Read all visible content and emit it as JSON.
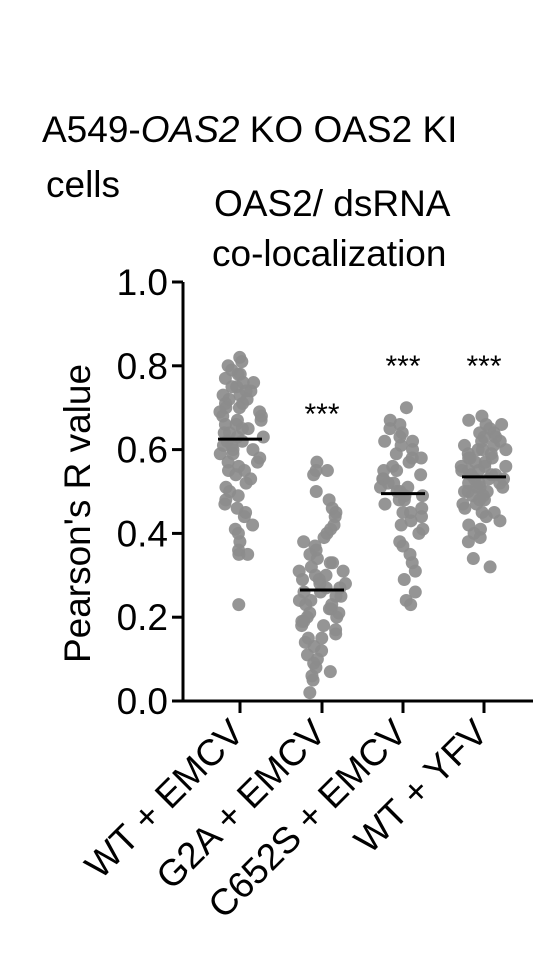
{
  "header": {
    "title_part1": "A549-",
    "title_italic": "OAS2",
    "title_part2": " KO OAS2 KI",
    "title_line2": "cells",
    "subtitle_line1": "OAS2/ dsRNA",
    "subtitle_line2": "co-localization"
  },
  "chart_data": {
    "type": "scatter",
    "title": "OAS2/ dsRNA co-localization",
    "ylabel": "Pearson's R value",
    "xlabel": "",
    "ylim": [
      0.0,
      1.0
    ],
    "yticks": [
      "0.0",
      "0.2",
      "0.4",
      "0.6",
      "0.8",
      "1.0"
    ],
    "categories": [
      "WT + EMCV",
      "G2A + EMCV",
      "C652S + EMCV",
      "WT + YFV"
    ],
    "point_color": "#8c8c8c",
    "median_color": "#000000",
    "groups": [
      {
        "category": "WT + EMCV",
        "median": 0.625,
        "significance": "",
        "values": [
          0.82,
          0.81,
          0.8,
          0.79,
          0.78,
          0.78,
          0.77,
          0.76,
          0.76,
          0.75,
          0.75,
          0.74,
          0.74,
          0.73,
          0.73,
          0.72,
          0.72,
          0.71,
          0.71,
          0.7,
          0.7,
          0.69,
          0.69,
          0.68,
          0.68,
          0.67,
          0.67,
          0.66,
          0.66,
          0.65,
          0.65,
          0.64,
          0.64,
          0.63,
          0.63,
          0.62,
          0.62,
          0.61,
          0.61,
          0.6,
          0.6,
          0.59,
          0.59,
          0.58,
          0.57,
          0.57,
          0.56,
          0.55,
          0.55,
          0.54,
          0.53,
          0.52,
          0.51,
          0.5,
          0.49,
          0.48,
          0.47,
          0.46,
          0.45,
          0.44,
          0.42,
          0.41,
          0.4,
          0.38,
          0.36,
          0.35,
          0.35,
          0.23
        ]
      },
      {
        "category": "G2A + EMCV",
        "median": 0.265,
        "significance": "***",
        "values": [
          0.57,
          0.55,
          0.55,
          0.54,
          0.5,
          0.48,
          0.46,
          0.45,
          0.44,
          0.42,
          0.41,
          0.4,
          0.39,
          0.38,
          0.37,
          0.36,
          0.35,
          0.34,
          0.33,
          0.33,
          0.32,
          0.31,
          0.31,
          0.3,
          0.3,
          0.29,
          0.29,
          0.28,
          0.28,
          0.27,
          0.27,
          0.26,
          0.26,
          0.25,
          0.25,
          0.24,
          0.24,
          0.23,
          0.23,
          0.22,
          0.22,
          0.21,
          0.21,
          0.2,
          0.2,
          0.19,
          0.19,
          0.18,
          0.18,
          0.17,
          0.16,
          0.15,
          0.15,
          0.14,
          0.13,
          0.12,
          0.11,
          0.1,
          0.09,
          0.08,
          0.07,
          0.06,
          0.05,
          0.02
        ]
      },
      {
        "category": "C652S + EMCV",
        "median": 0.495,
        "significance": "***",
        "values": [
          0.7,
          0.67,
          0.66,
          0.65,
          0.64,
          0.63,
          0.62,
          0.62,
          0.61,
          0.6,
          0.59,
          0.58,
          0.58,
          0.57,
          0.56,
          0.55,
          0.55,
          0.54,
          0.53,
          0.53,
          0.52,
          0.52,
          0.51,
          0.51,
          0.5,
          0.5,
          0.49,
          0.49,
          0.48,
          0.48,
          0.47,
          0.46,
          0.45,
          0.45,
          0.44,
          0.43,
          0.42,
          0.41,
          0.4,
          0.38,
          0.37,
          0.35,
          0.33,
          0.31,
          0.29,
          0.26,
          0.24,
          0.23
        ]
      },
      {
        "category": "WT + YFV",
        "median": 0.535,
        "significance": "***",
        "values": [
          0.68,
          0.67,
          0.66,
          0.66,
          0.65,
          0.64,
          0.64,
          0.63,
          0.63,
          0.62,
          0.62,
          0.61,
          0.61,
          0.6,
          0.6,
          0.6,
          0.59,
          0.59,
          0.58,
          0.58,
          0.58,
          0.57,
          0.57,
          0.56,
          0.56,
          0.56,
          0.55,
          0.55,
          0.55,
          0.54,
          0.54,
          0.54,
          0.53,
          0.53,
          0.53,
          0.52,
          0.52,
          0.52,
          0.51,
          0.51,
          0.51,
          0.5,
          0.5,
          0.5,
          0.49,
          0.49,
          0.48,
          0.48,
          0.47,
          0.47,
          0.46,
          0.45,
          0.45,
          0.44,
          0.43,
          0.42,
          0.41,
          0.4,
          0.39,
          0.38,
          0.34,
          0.32
        ]
      }
    ]
  }
}
